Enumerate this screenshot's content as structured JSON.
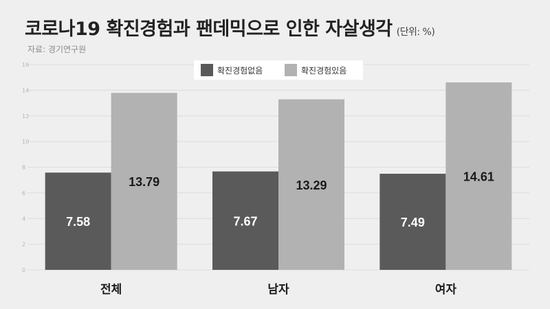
{
  "title": "코로나19 확진경험과 팬데믹으로 인한 자살생각",
  "unit": "(단위: %)",
  "source": "자료: 경기연구원",
  "colors": {
    "background": "#efefef",
    "series_no": "#5a5a5a",
    "series_yes": "#b2b2b2",
    "gridline": "#dcdcdc",
    "label_dark": "#ffffff",
    "label_light": "#1a1a1a"
  },
  "chart_data": {
    "type": "bar",
    "categories": [
      "전체",
      "남자",
      "여자"
    ],
    "series": [
      {
        "name": "확진경험없음",
        "values": [
          7.58,
          7.67,
          7.49
        ]
      },
      {
        "name": "확진경험있음",
        "values": [
          13.79,
          13.29,
          14.61
        ]
      }
    ],
    "ylim": [
      0,
      16
    ],
    "yticks": [
      0,
      2,
      4,
      6,
      8,
      10,
      12,
      14,
      16
    ],
    "grid": true,
    "legend": "top-center",
    "data_labels": true
  }
}
